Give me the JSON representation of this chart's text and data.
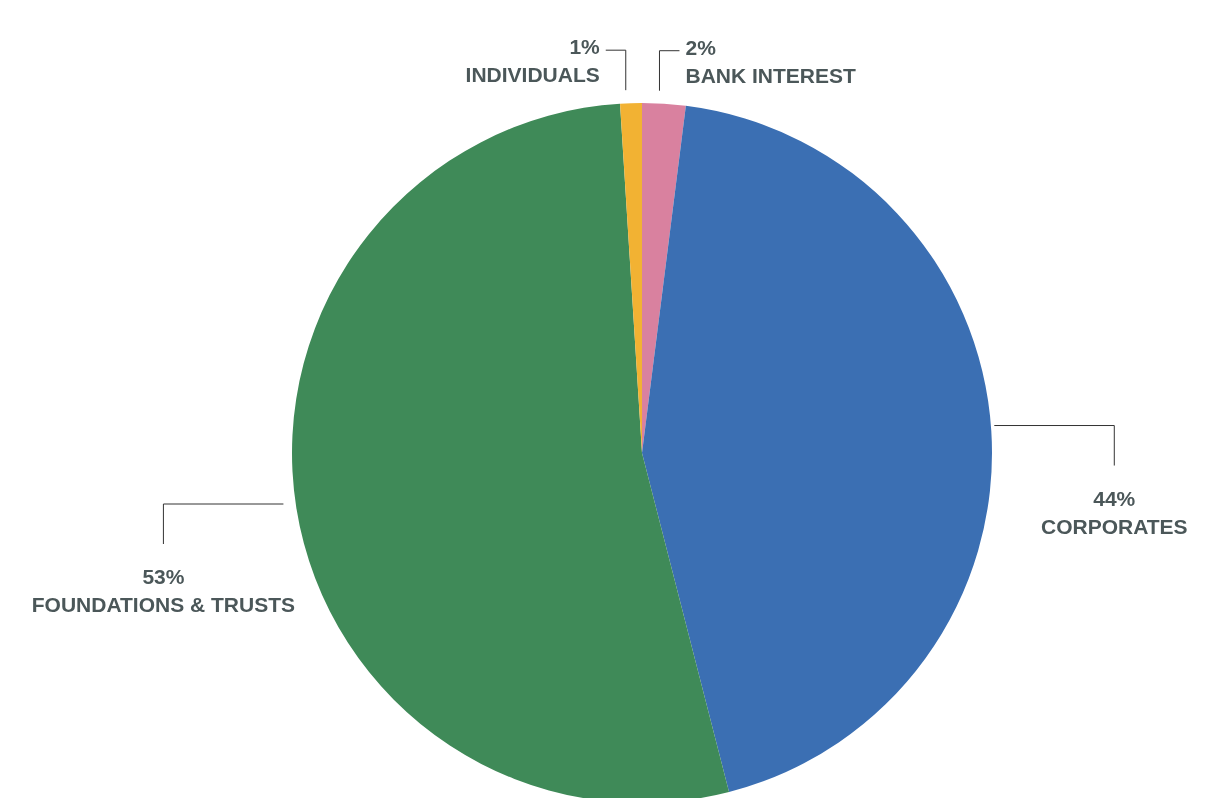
{
  "chart_data": {
    "type": "pie",
    "categories": [
      "BANK INTEREST",
      "CORPORATES",
      "FOUNDATIONS & TRUSTS",
      "INDIVIDUALS"
    ],
    "values": [
      2,
      44,
      53,
      1
    ],
    "value_labels": [
      "2%",
      "44%",
      "53%",
      "1%"
    ],
    "colors": [
      "#d9819f",
      "#3b6fb3",
      "#3f8a58",
      "#f2b233"
    ]
  }
}
